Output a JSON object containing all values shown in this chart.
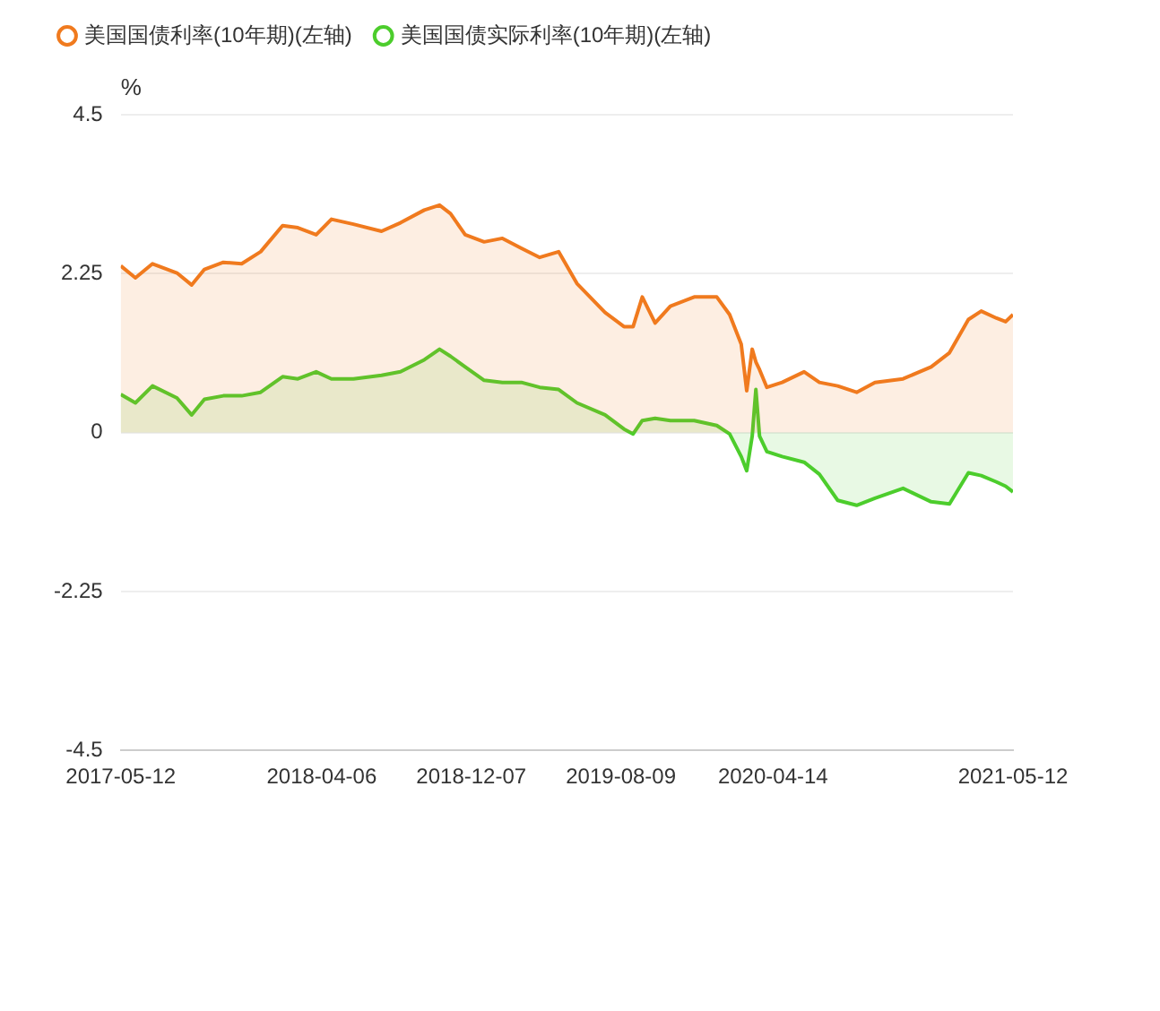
{
  "chart_data": {
    "type": "area",
    "ylabel": "%",
    "legend": "top left",
    "grid": "y",
    "marker": "none",
    "x": [
      "2017-05-12",
      "2017-06-05",
      "2017-07-03",
      "2017-08-12",
      "2017-09-05",
      "2017-09-26",
      "2017-10-27",
      "2017-11-26",
      "2017-12-27",
      "2018-02-01",
      "2018-02-26",
      "2018-03-28",
      "2018-04-22",
      "2018-05-28",
      "2018-07-13",
      "2018-08-13",
      "2018-09-21",
      "2018-10-16",
      "2018-11-03",
      "2018-11-27",
      "2018-12-28",
      "2019-01-27",
      "2019-02-27",
      "2019-03-29",
      "2019-04-29",
      "2019-05-29",
      "2019-07-14",
      "2019-08-14",
      "2019-08-29",
      "2019-09-13",
      "2019-10-04",
      "2019-10-29",
      "2019-12-07",
      "2020-01-13",
      "2020-02-03",
      "2020-02-22",
      "2020-03-02",
      "2020-03-11",
      "2020-03-17",
      "2020-03-23",
      "2020-04-04",
      "2020-04-29",
      "2020-06-04",
      "2020-06-29",
      "2020-07-29",
      "2020-08-29",
      "2020-09-28",
      "2020-11-13",
      "2020-12-29",
      "2021-01-28",
      "2021-02-28",
      "2021-03-21",
      "2021-04-15",
      "2021-04-30",
      "2021-05-12"
    ],
    "xlim": [
      "2017-05-12",
      "2021-05-12"
    ],
    "xticks": [
      "2017-05-12",
      "2018-04-06",
      "2018-12-07",
      "2019-08-09",
      "2020-04-14",
      "2021-05-12"
    ],
    "ylim": [
      -4.5,
      4.5
    ],
    "yticks": [
      -4.5,
      -2.25,
      0,
      2.25,
      4.5
    ],
    "series": [
      {
        "name": "美国国债利率(10年期)(左轴)",
        "color": "#f07a1e",
        "values": [
          2.36,
          2.19,
          2.39,
          2.26,
          2.09,
          2.31,
          2.41,
          2.39,
          2.56,
          2.93,
          2.9,
          2.8,
          3.02,
          2.95,
          2.85,
          2.97,
          3.15,
          3.22,
          3.1,
          2.8,
          2.7,
          2.75,
          2.61,
          2.48,
          2.56,
          2.11,
          1.7,
          1.5,
          1.5,
          1.92,
          1.55,
          1.79,
          1.92,
          1.92,
          1.67,
          1.25,
          0.59,
          1.18,
          1.0,
          0.89,
          0.64,
          0.71,
          0.86,
          0.71,
          0.66,
          0.57,
          0.71,
          0.76,
          0.93,
          1.13,
          1.6,
          1.72,
          1.62,
          1.57,
          1.67
        ]
      },
      {
        "name": "美国国债实际利率(10年期)(左轴)",
        "color": "#4ccd2c",
        "values": [
          0.54,
          0.42,
          0.66,
          0.49,
          0.25,
          0.47,
          0.52,
          0.52,
          0.57,
          0.79,
          0.76,
          0.86,
          0.76,
          0.76,
          0.81,
          0.86,
          1.03,
          1.18,
          1.08,
          0.93,
          0.74,
          0.71,
          0.71,
          0.64,
          0.61,
          0.42,
          0.25,
          0.05,
          -0.02,
          0.17,
          0.2,
          0.17,
          0.17,
          0.1,
          -0.02,
          -0.34,
          -0.54,
          -0.05,
          0.61,
          -0.05,
          -0.27,
          -0.34,
          -0.42,
          -0.59,
          -0.96,
          -1.03,
          -0.93,
          -0.79,
          -0.98,
          -1.01,
          -0.57,
          -0.61,
          -0.7,
          -0.76,
          -0.84
        ]
      }
    ]
  }
}
